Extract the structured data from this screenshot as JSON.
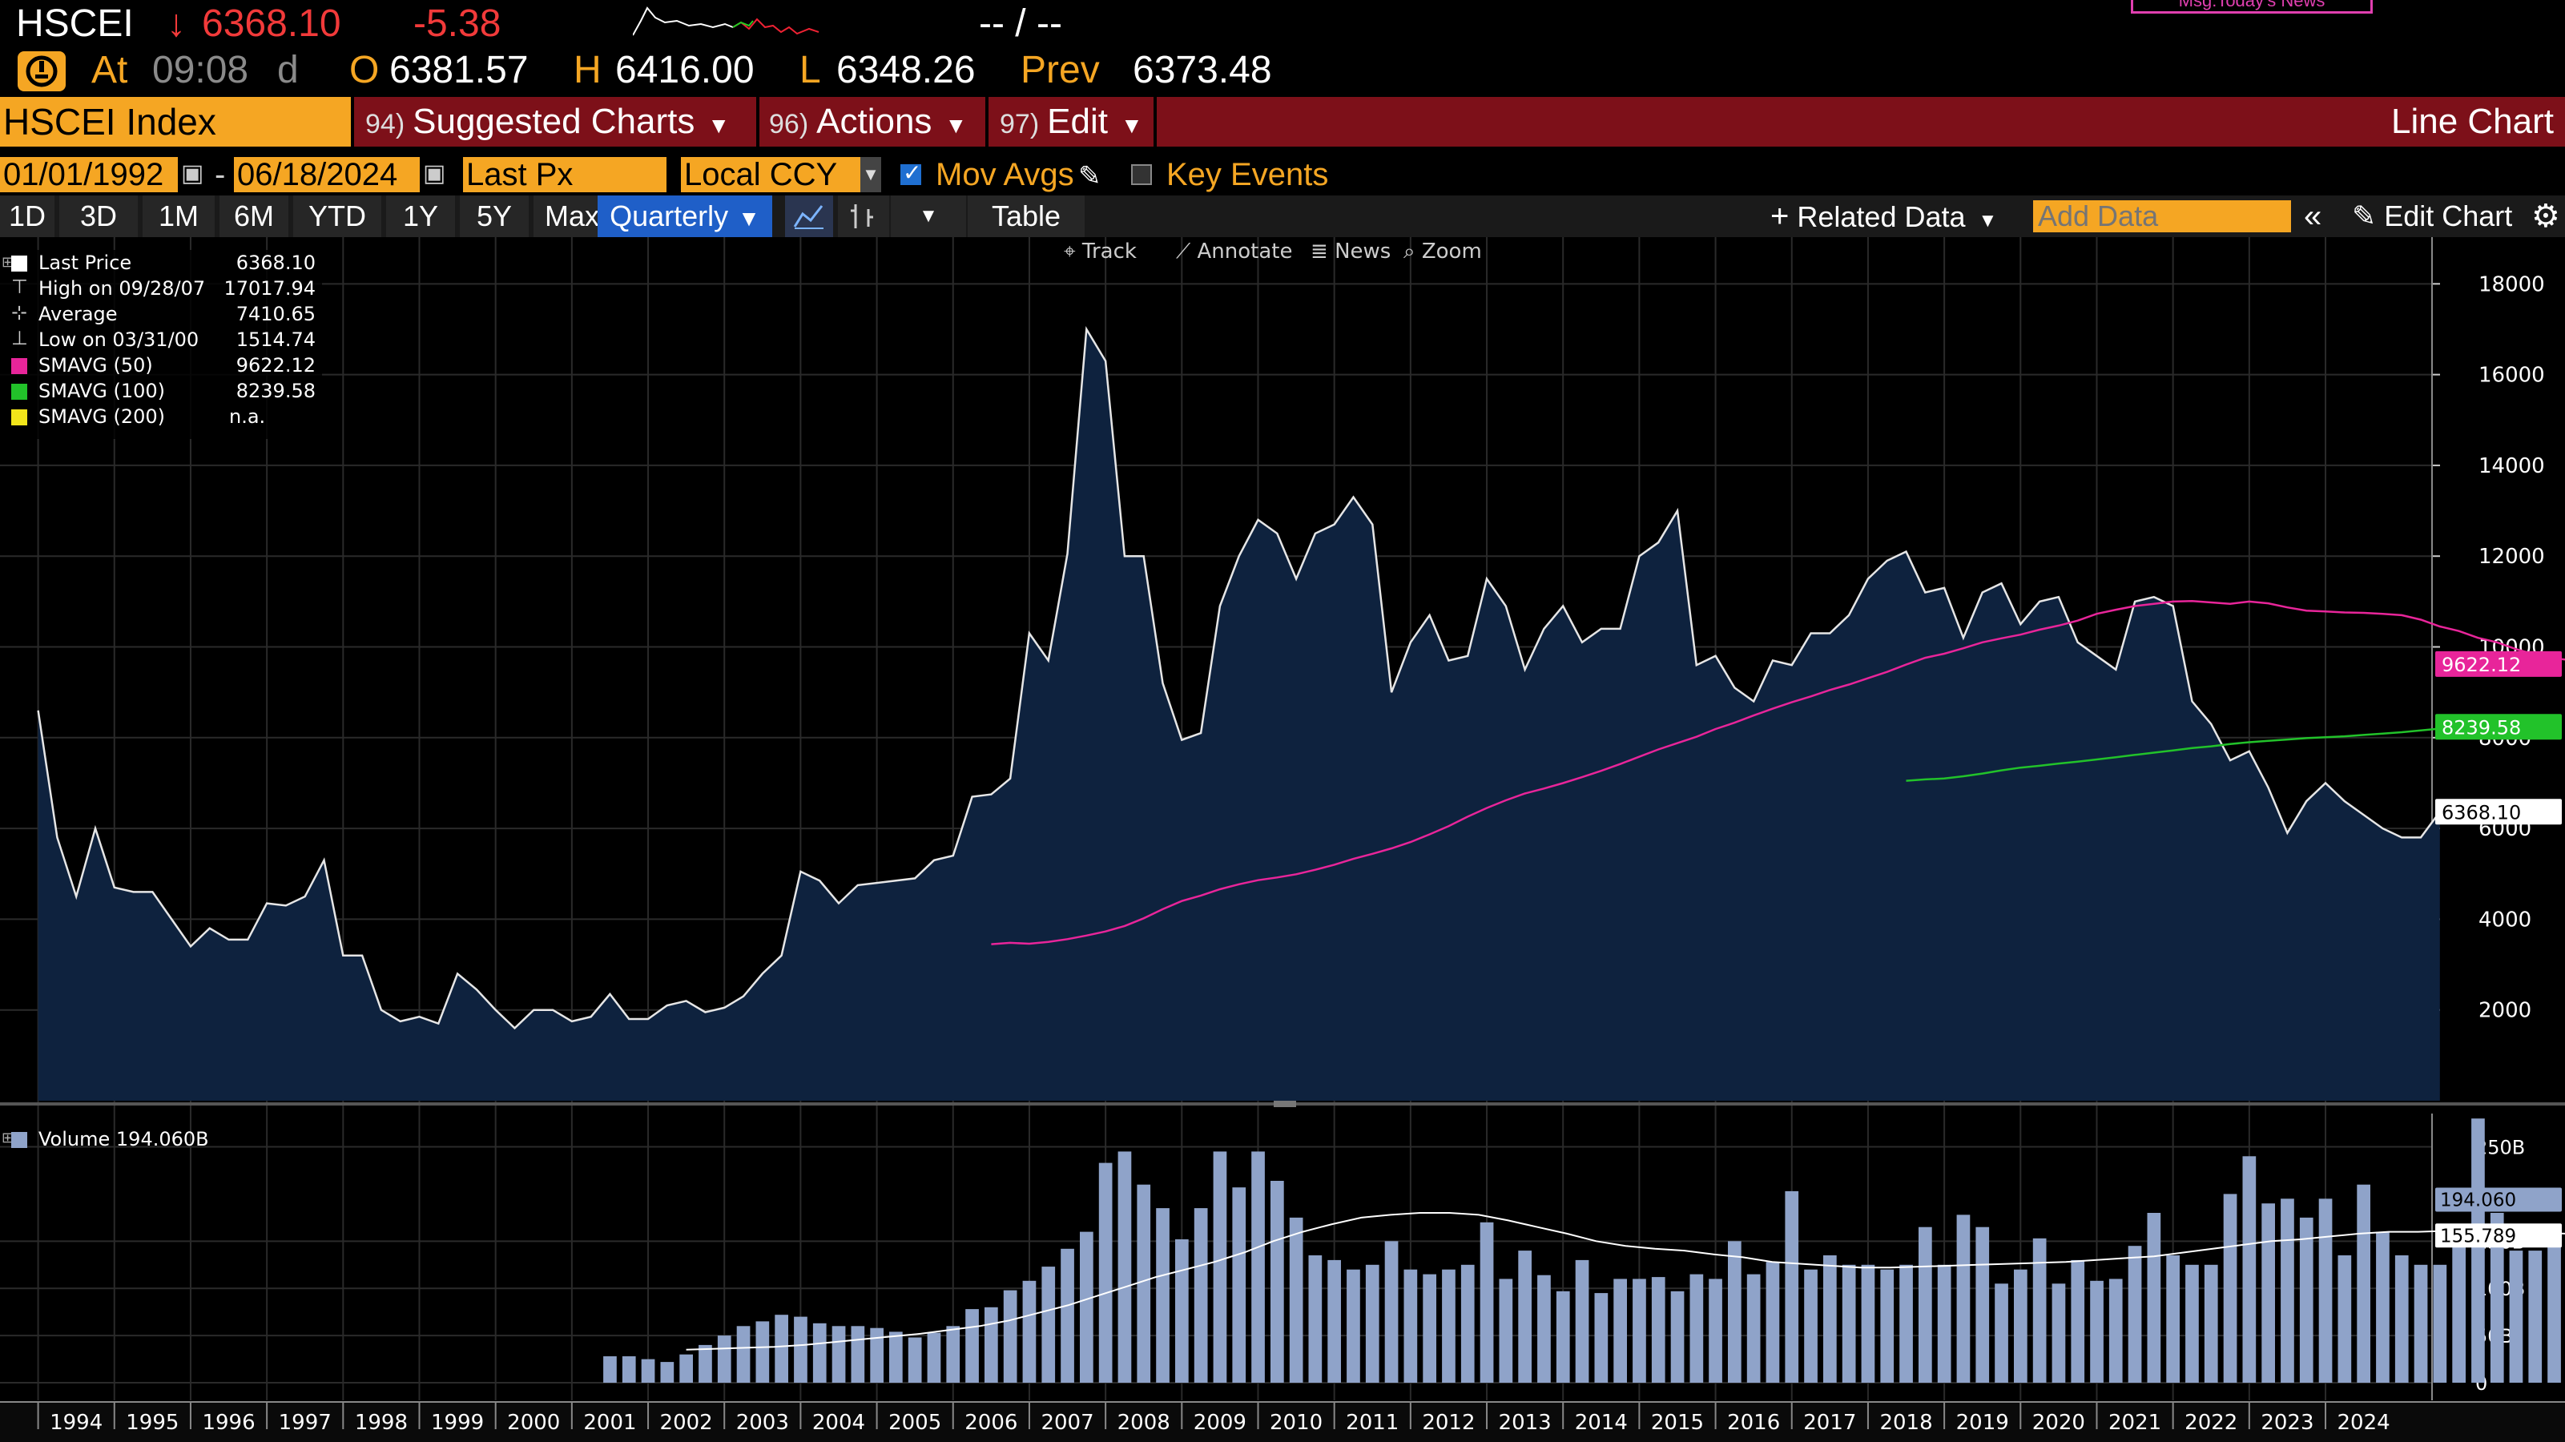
{
  "header": {
    "ticker": "HSCEI",
    "price_arrow": "↓",
    "price": "6368.10",
    "change": "-5.38",
    "bid_ask": "-- / --",
    "news_badge": "Msg:Today's News",
    "time_label": "At",
    "time": "09:08",
    "time_suffix": "d",
    "open_label": "O",
    "open": "6381.57",
    "high_label": "H",
    "high": "6416.00",
    "low_label": "L",
    "low": "6348.26",
    "prev_label": "Prev",
    "prev": "6373.48"
  },
  "menubar": {
    "security": "HSCEI Index",
    "suggested_num": "94)",
    "suggested_label": "Suggested Charts",
    "actions_num": "96)",
    "actions_label": "Actions",
    "edit_num": "97)",
    "edit_label": "Edit",
    "chart_type_label": "Line Chart"
  },
  "controls": {
    "start_date": "01/01/1992",
    "date_separator": "-",
    "end_date": "06/18/2024",
    "field": "Last Px",
    "currency": "Local CCY",
    "mov_avgs_label": "Mov Avgs",
    "key_events_label": "Key Events"
  },
  "ranges": [
    "1D",
    "3D",
    "1M",
    "6M",
    "YTD",
    "1Y",
    "5Y",
    "Max"
  ],
  "period": "Quarterly",
  "table_label": "Table",
  "related_data_label": "Related Data",
  "add_data_placeholder": "Add Data",
  "edit_chart_label": "Edit Chart",
  "chart_tools": [
    "Track",
    "Annotate",
    "News",
    "Zoom"
  ],
  "legend": {
    "rows": [
      {
        "name": "Last Price",
        "value": "6368.10",
        "color": "#ffffff"
      },
      {
        "name": "High on 09/28/07",
        "value": "17017.94",
        "color": ""
      },
      {
        "name": "Average",
        "value": "7410.65",
        "color": ""
      },
      {
        "name": "Low on 03/31/00",
        "value": "1514.74",
        "color": ""
      },
      {
        "name": "SMAVG (50)",
        "value": "9622.12",
        "color": "#e8259a"
      },
      {
        "name": "SMAVG (100)",
        "value": "8239.58",
        "color": "#22c22a"
      },
      {
        "name": "SMAVG (200)",
        "value": "n.a.",
        "color": "#f2e51a"
      }
    ],
    "volume_name": "Volume",
    "volume_value": "194.060B"
  },
  "chart_data": {
    "type": "line",
    "x_labels": [
      "1994",
      "1995",
      "1996",
      "1997",
      "1998",
      "1999",
      "2000",
      "2001",
      "2002",
      "2003",
      "2004",
      "2005",
      "2006",
      "2007",
      "2008",
      "2009",
      "2010",
      "2011",
      "2012",
      "2013",
      "2014",
      "2015",
      "2016",
      "2017",
      "2018",
      "2019",
      "2020",
      "2021",
      "2022",
      "2023",
      "2024"
    ],
    "price_yticks": [
      "2000",
      "4000",
      "6000",
      "8000",
      "10000",
      "12000",
      "14000",
      "16000",
      "18000"
    ],
    "price_ylim": [
      0,
      18500
    ],
    "volume_yticks": [
      "0",
      "50B",
      "100B",
      "150B",
      "250B"
    ],
    "volume_ylim": [
      0,
      270
    ],
    "price_labels": {
      "last": "6368.10",
      "sma50": "9622.12",
      "sma100": "8239.58"
    },
    "volume_labels": {
      "last": "194.060",
      "ma": "155.789"
    },
    "x_start": 1993.5,
    "step": 0.25,
    "price": [
      8600,
      5800,
      4500,
      6000,
      4700,
      4600,
      4600,
      4000,
      3400,
      3800,
      3550,
      3550,
      4350,
      4300,
      4500,
      5300,
      3200,
      3200,
      2000,
      1750,
      1850,
      1700,
      2800,
      2450,
      2000,
      1600,
      2000,
      2000,
      1750,
      1850,
      2350,
      1800,
      1800,
      2100,
      2200,
      1950,
      2050,
      2300,
      2800,
      3200,
      5050,
      4850,
      4350,
      4750,
      4800,
      4850,
      4900,
      5300,
      5400,
      6700,
      6750,
      7100,
      10300,
      9700,
      12050,
      17000,
      16300,
      12000,
      12000,
      9200,
      7950,
      8100,
      10900,
      12000,
      12800,
      12500,
      11500,
      12500,
      12700,
      13300,
      12700,
      9000,
      10100,
      10700,
      9700,
      9800,
      11500,
      10900,
      9500,
      10400,
      10900,
      10100,
      10400,
      10400,
      12000,
      12300,
      13000,
      9600,
      9800,
      9100,
      8800,
      9700,
      9600,
      10300,
      10300,
      10700,
      11500,
      11900,
      12100,
      11200,
      11300,
      10200,
      11200,
      11400,
      10500,
      11000,
      11100,
      10100,
      9800,
      9500,
      11000,
      11100,
      10900,
      8800,
      8300,
      7500,
      7700,
      6900,
      5900,
      6600,
      7000,
      6600,
      6300,
      6000,
      5800,
      5800,
      6368
    ],
    "sma50_x_start": 2006.0,
    "sma50": [
      3450,
      3480,
      3460,
      3500,
      3560,
      3640,
      3730,
      3850,
      4020,
      4220,
      4400,
      4520,
      4660,
      4770,
      4860,
      4920,
      4990,
      5090,
      5200,
      5330,
      5440,
      5560,
      5700,
      5870,
      6050,
      6260,
      6450,
      6620,
      6770,
      6880,
      7000,
      7130,
      7270,
      7420,
      7580,
      7740,
      7880,
      8020,
      8190,
      8330,
      8490,
      8640,
      8780,
      8910,
      9050,
      9170,
      9310,
      9450,
      9610,
      9760,
      9850,
      9970,
      10100,
      10190,
      10270,
      10380,
      10470,
      10580,
      10730,
      10820,
      10900,
      10950,
      11000,
      11010,
      10980,
      10950,
      11000,
      10960,
      10870,
      10800,
      10780,
      10760,
      10750,
      10730,
      10700,
      10600,
      10450,
      10350,
      10200,
      10100,
      9950,
      9830,
      9750,
      9700,
      9622
    ],
    "sma100_x_start": 2018.0,
    "sma100": [
      7050,
      7080,
      7100,
      7150,
      7210,
      7280,
      7340,
      7380,
      7430,
      7470,
      7520,
      7570,
      7620,
      7670,
      7720,
      7770,
      7810,
      7860,
      7900,
      7930,
      7960,
      7990,
      8010,
      8030,
      8060,
      8090,
      8120,
      8160,
      8200,
      8220,
      8239
    ],
    "volume_x_start": 2001.0,
    "volume": [
      28,
      28,
      25,
      22,
      30,
      40,
      50,
      60,
      65,
      72,
      70,
      63,
      60,
      60,
      58,
      54,
      48,
      53,
      60,
      78,
      80,
      98,
      108,
      123,
      142,
      160,
      233,
      245,
      210,
      185,
      152,
      185,
      245,
      207,
      245,
      214,
      175,
      135,
      130,
      120,
      125,
      150,
      120,
      115,
      120,
      125,
      170,
      110,
      140,
      114,
      97,
      130,
      95,
      110,
      110,
      112,
      97,
      115,
      110,
      150,
      115,
      128,
      203,
      120,
      135,
      125,
      125,
      120,
      125,
      165,
      125,
      178,
      165,
      105,
      120,
      153,
      105,
      130,
      108,
      110,
      145,
      180,
      135,
      125,
      125,
      200,
      240,
      190,
      195,
      175,
      195,
      135,
      210,
      160,
      135,
      125,
      125,
      160,
      280,
      180,
      140,
      140,
      145,
      123,
      110,
      150,
      130,
      115,
      125,
      175,
      140,
      135,
      125,
      135,
      153,
      120,
      160,
      114,
      130,
      150,
      194
    ],
    "volume_ma": [
      35,
      36,
      37,
      38,
      40,
      43,
      46,
      49,
      52,
      56,
      60,
      66,
      74,
      82,
      92,
      102,
      112,
      120,
      128,
      138,
      150,
      160,
      168,
      175,
      178,
      180,
      180,
      178,
      172,
      165,
      158,
      150,
      145,
      142,
      140,
      136,
      133,
      128,
      126,
      124,
      122,
      122,
      123,
      124,
      125,
      126,
      127,
      128,
      130,
      132,
      134,
      138,
      142,
      146,
      150,
      152,
      155,
      158,
      160,
      160,
      161,
      162,
      160,
      159,
      158,
      156,
      155,
      154,
      155,
      156,
      158,
      158,
      157,
      156,
      155,
      156
    ]
  }
}
